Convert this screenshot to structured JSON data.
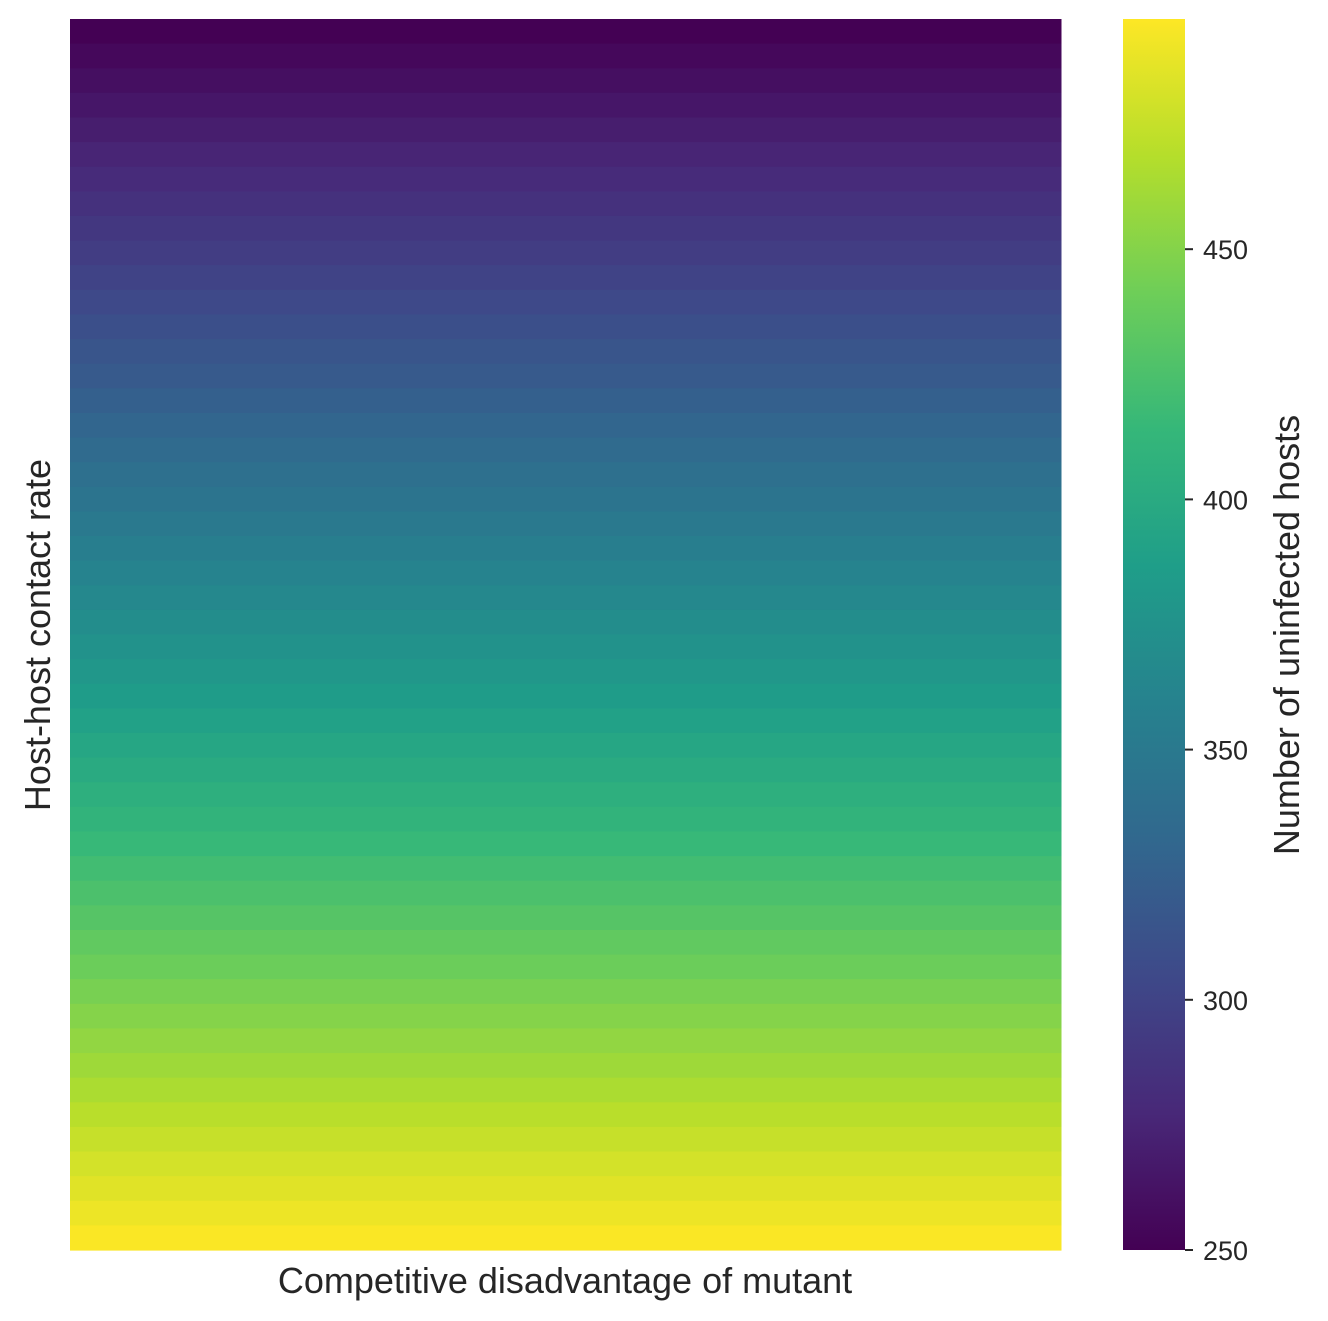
{
  "chart_data": {
    "type": "heatmap",
    "title": "",
    "xlabel": "Competitive disadvantage of mutant",
    "ylabel": "Host-host contact rate",
    "x_tick_labels": [],
    "y_tick_labels": [],
    "grid": false,
    "colormap": "viridis",
    "colormap_stops": [
      "#440154",
      "#482878",
      "#3e4989",
      "#31688e",
      "#26828e",
      "#1f9e89",
      "#35b779",
      "#6ece58",
      "#b5de2b",
      "#fde725"
    ],
    "columns": 1,
    "rows": 50,
    "row_values_top_to_bottom": [
      250,
      255,
      260,
      265,
      270,
      275,
      280,
      285,
      290,
      295,
      300,
      305,
      310,
      315,
      320,
      325,
      330,
      335,
      340,
      345,
      350,
      355,
      360,
      365,
      370,
      375,
      380,
      385,
      390,
      395,
      400,
      405,
      410,
      415,
      420,
      425,
      430,
      435,
      440,
      445,
      450,
      455,
      460,
      465,
      470,
      475,
      480,
      485,
      490,
      495
    ],
    "colorbar": {
      "label": "Number of uninfected hosts",
      "min": 250,
      "max": 496,
      "ticks": [
        250,
        300,
        350,
        400,
        450
      ],
      "tick_labels": [
        "250",
        "300",
        "350",
        "400",
        "450"
      ]
    }
  }
}
